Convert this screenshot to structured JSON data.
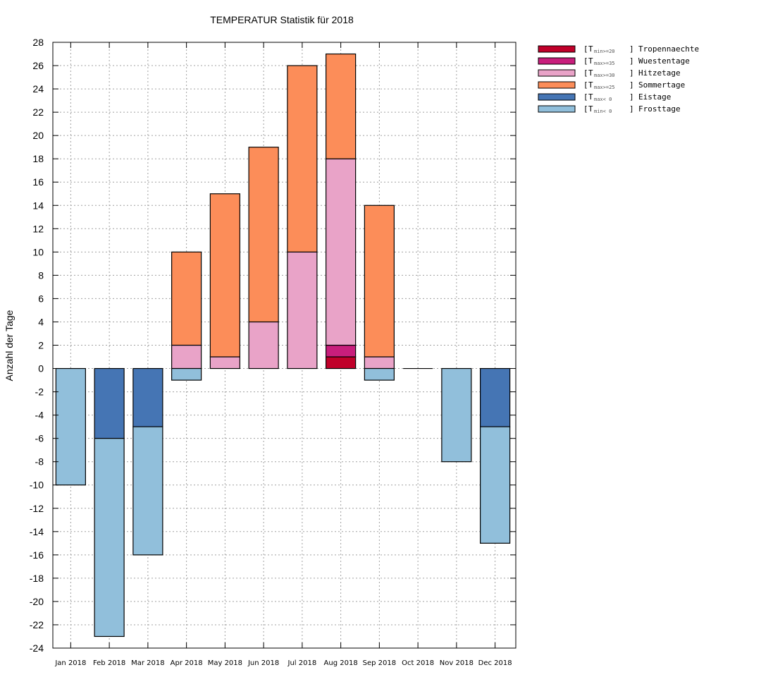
{
  "chart_data": {
    "type": "bar",
    "stacked": true,
    "title": "TEMPERATUR Statistik für 2018",
    "xlabel": "",
    "ylabel": "Anzahl der Tage",
    "ylim": [
      -24,
      28
    ],
    "yticks": [
      28,
      26,
      24,
      22,
      20,
      18,
      16,
      14,
      12,
      10,
      8,
      6,
      4,
      2,
      0,
      -2,
      -4,
      -6,
      -8,
      -10,
      -12,
      -14,
      -16,
      -18,
      -20,
      -22,
      -24
    ],
    "grid": true,
    "legend_position": "outside-top-right",
    "categories": [
      "Jan 2018",
      "Feb 2018",
      "Mar 2018",
      "Apr 2018",
      "May 2018",
      "Jun 2018",
      "Jul 2018",
      "Aug 2018",
      "Sep 2018",
      "Oct 2018",
      "Nov 2018",
      "Dec 2018"
    ],
    "series": [
      {
        "name": "Tropennaechte",
        "condition": "T",
        "sub": "min>=20",
        "color": "#c0002a",
        "direction": "positive",
        "values": [
          0,
          0,
          0,
          0,
          0,
          0,
          0,
          1,
          0,
          0,
          0,
          0
        ]
      },
      {
        "name": "Wuestentage",
        "condition": "T",
        "sub": "max>=35",
        "color": "#c81e7c",
        "direction": "positive",
        "values": [
          0,
          0,
          0,
          0,
          0,
          0,
          0,
          1,
          0,
          0,
          0,
          0
        ]
      },
      {
        "name": "Hitzetage",
        "condition": "T",
        "sub": "max>=30",
        "color": "#e9a3c8",
        "direction": "positive",
        "values": [
          0,
          0,
          0,
          2,
          1,
          4,
          10,
          16,
          1,
          0,
          0,
          0
        ]
      },
      {
        "name": "Sommertage",
        "condition": "T",
        "sub": "max>=25",
        "color": "#fc8d59",
        "direction": "positive",
        "values": [
          0,
          0,
          0,
          8,
          14,
          15,
          16,
          9,
          13,
          0,
          0,
          0
        ]
      },
      {
        "name": "Eistage",
        "condition": "T",
        "sub": "max< 0",
        "color": "#4575b4",
        "direction": "negative",
        "values": [
          0,
          6,
          5,
          0,
          0,
          0,
          0,
          0,
          0,
          0,
          0,
          5
        ]
      },
      {
        "name": "Frosttage",
        "condition": "T",
        "sub": "min< 0",
        "color": "#91bfdb",
        "direction": "negative",
        "values": [
          10,
          17,
          11,
          1,
          0,
          0,
          0,
          0,
          1,
          0,
          8,
          10
        ]
      }
    ]
  }
}
